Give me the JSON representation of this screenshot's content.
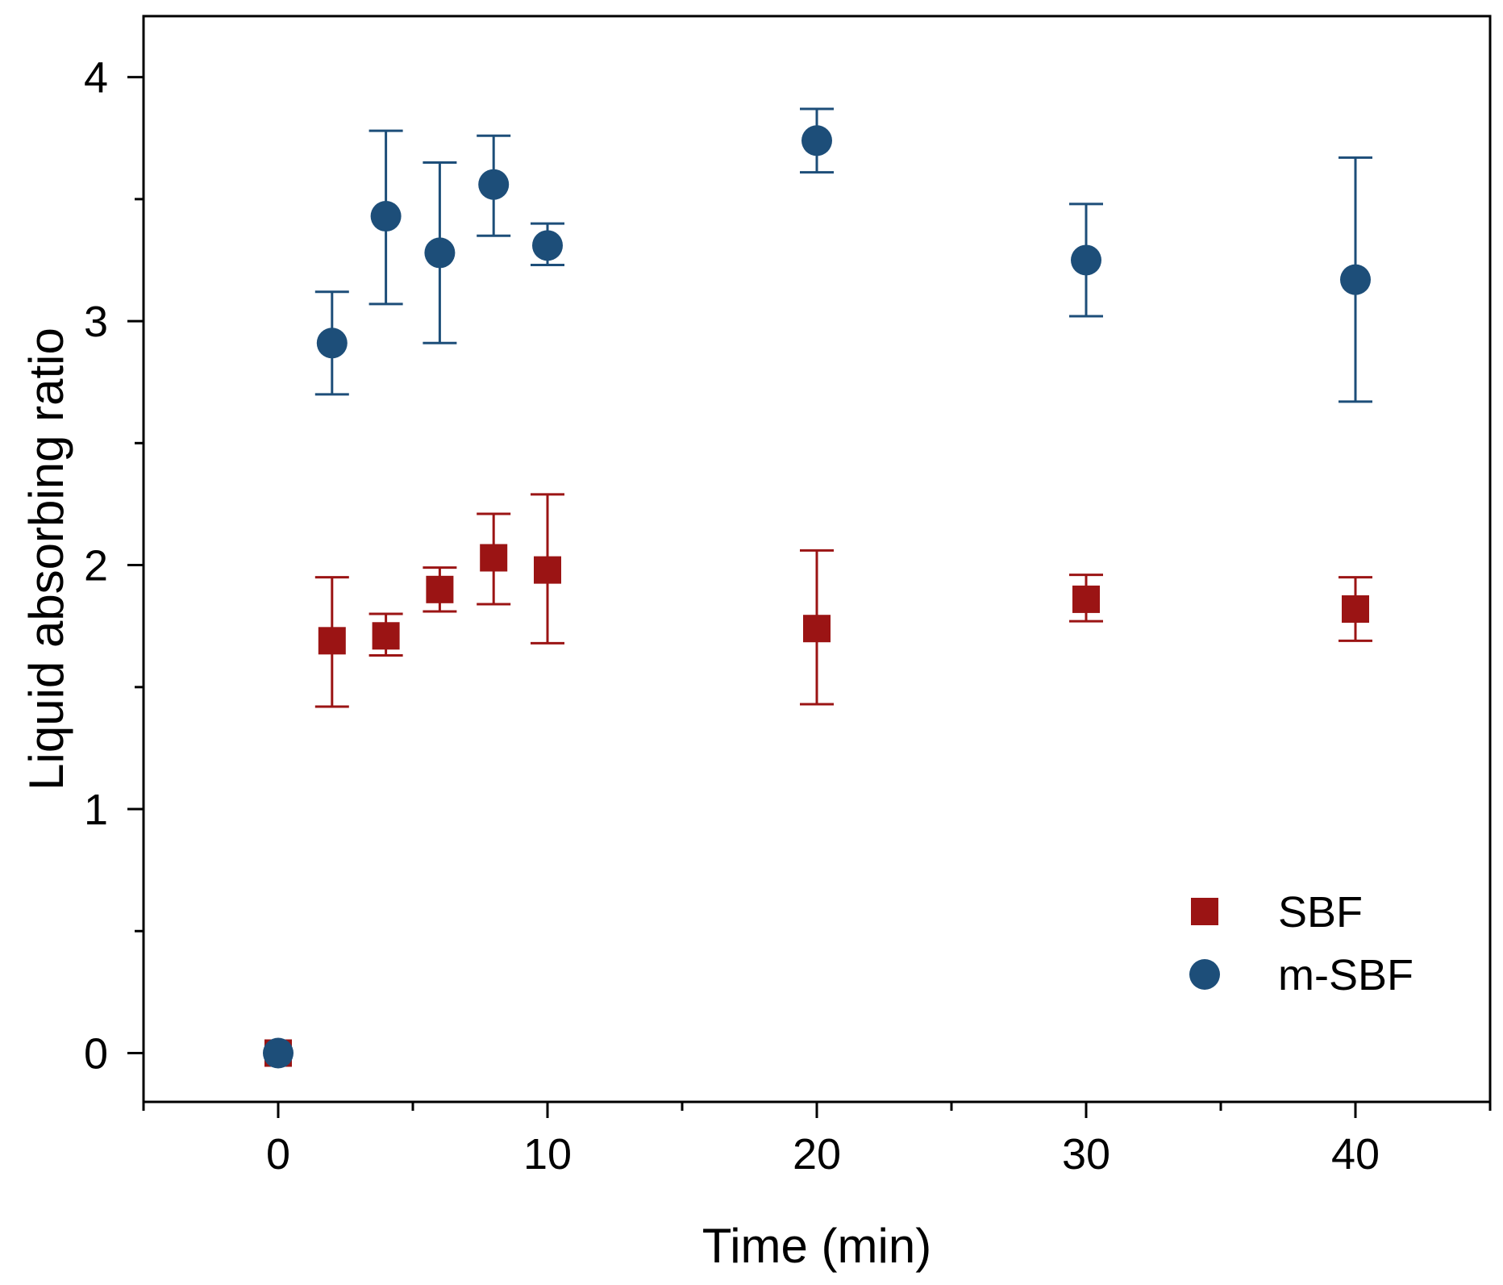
{
  "chart_data": {
    "type": "scatter",
    "xlabel": "Time (min)",
    "ylabel": "Liquid absorbing ratio",
    "xlim": [
      -5,
      45
    ],
    "ylim": [
      -0.2,
      4.25
    ],
    "x_ticks": [
      0,
      10,
      20,
      30,
      40
    ],
    "x_minor_ticks": [
      -5,
      5,
      15,
      25,
      35,
      45
    ],
    "y_ticks": [
      0,
      1,
      2,
      3,
      4
    ],
    "y_minor_ticks": [
      0.5,
      1.5,
      2.5,
      3.5
    ],
    "x_tick_labels": [
      "0",
      "10",
      "20",
      "30",
      "40"
    ],
    "y_tick_labels": [
      "0",
      "1",
      "2",
      "3",
      "4"
    ],
    "grid": false,
    "legend_position": "bottom-right",
    "series": [
      {
        "name": "SBF",
        "marker": "square",
        "color": "#9b1414",
        "x": [
          0,
          2,
          4,
          6,
          8,
          10,
          20,
          30,
          40
        ],
        "y": [
          0,
          1.69,
          1.71,
          1.9,
          2.03,
          1.98,
          1.74,
          1.86,
          1.82
        ],
        "err_low": [
          0,
          1.42,
          1.63,
          1.81,
          1.84,
          1.68,
          1.43,
          1.77,
          1.69
        ],
        "err_high": [
          0,
          1.95,
          1.8,
          1.99,
          2.21,
          2.29,
          2.06,
          1.96,
          1.95
        ]
      },
      {
        "name": "m-SBF",
        "marker": "circle",
        "color": "#1d4e79",
        "x": [
          0,
          2,
          4,
          6,
          8,
          10,
          20,
          30,
          40
        ],
        "y": [
          0,
          2.91,
          3.43,
          3.28,
          3.56,
          3.31,
          3.74,
          3.25,
          3.17
        ],
        "err_low": [
          0,
          2.7,
          3.07,
          2.91,
          3.35,
          3.23,
          3.61,
          3.02,
          2.67
        ],
        "err_high": [
          0,
          3.12,
          3.78,
          3.65,
          3.76,
          3.4,
          3.87,
          3.48,
          3.67
        ]
      }
    ]
  }
}
